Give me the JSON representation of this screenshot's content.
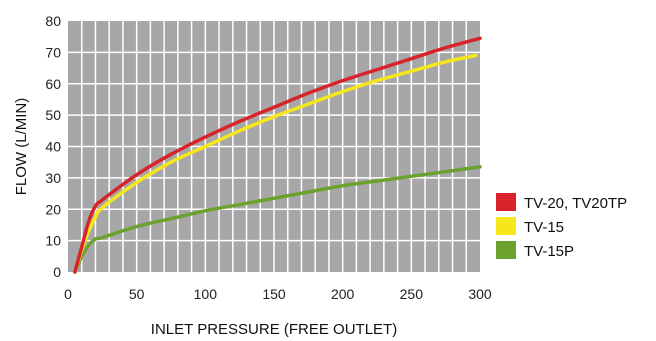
{
  "chart_data": {
    "type": "line",
    "xlabel": "INLET PRESSURE (FREE OUTLET)",
    "ylabel": "FLOW (L/MIN)",
    "xlim": [
      0,
      300
    ],
    "ylim": [
      0,
      80
    ],
    "x_ticks": [
      0,
      50,
      100,
      150,
      200,
      250,
      300
    ],
    "y_ticks": [
      0,
      10,
      20,
      30,
      40,
      50,
      60,
      70,
      80
    ],
    "grid": true,
    "plot_background": "#a7a7a9",
    "grid_color": "#ffffff",
    "legend_position": "right",
    "series": [
      {
        "name": "TV-20, TV20TP",
        "color": "#d8232a",
        "x": [
          5,
          10,
          15,
          20,
          25,
          50,
          75,
          100,
          125,
          150,
          175,
          200,
          225,
          250,
          275,
          300
        ],
        "y": [
          0,
          8,
          16,
          21,
          23,
          31,
          37.5,
          43,
          48,
          52.5,
          57,
          61,
          64.5,
          68,
          71.5,
          74.5
        ]
      },
      {
        "name": "TV-15",
        "color": "#f6e71d",
        "x": [
          5,
          10,
          15,
          20,
          25,
          50,
          75,
          100,
          125,
          150,
          175,
          200,
          225,
          250,
          275,
          297
        ],
        "y": [
          0,
          7,
          13,
          17.5,
          20.5,
          28.5,
          35,
          40,
          45,
          49.5,
          53.5,
          57.5,
          61,
          64,
          67,
          69
        ]
      },
      {
        "name": "TV-15P",
        "color": "#6aa22d",
        "x": [
          5,
          10,
          15,
          20,
          25,
          50,
          75,
          100,
          125,
          150,
          175,
          200,
          225,
          250,
          275,
          300
        ],
        "y": [
          0,
          5,
          8.5,
          10.5,
          11,
          14.5,
          17,
          19.5,
          21.5,
          23.5,
          25.5,
          27.5,
          29,
          30.5,
          32,
          33.5
        ]
      }
    ]
  }
}
